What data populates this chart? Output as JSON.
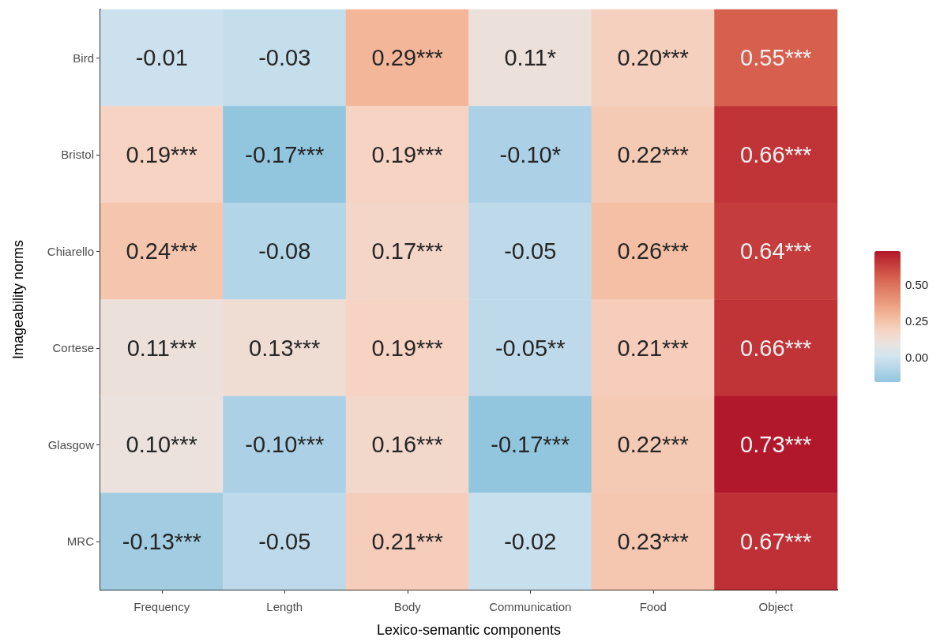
{
  "chart_data": {
    "type": "heatmap",
    "xlabel": "Lexico-semantic components",
    "ylabel": "Imageability norms",
    "categories": [
      "Frequency",
      "Length",
      "Body",
      "Communication",
      "Food",
      "Object"
    ],
    "y_categories": [
      "Bird",
      "Bristol",
      "Chiarello",
      "Cortese",
      "Glasgow",
      "MRC"
    ],
    "cells": [
      [
        -0.01,
        -0.03,
        0.29,
        0.11,
        0.2,
        0.55
      ],
      [
        0.19,
        -0.17,
        0.19,
        -0.1,
        0.22,
        0.66
      ],
      [
        0.24,
        -0.08,
        0.17,
        -0.05,
        0.26,
        0.64
      ],
      [
        0.11,
        0.13,
        0.19,
        -0.05,
        0.21,
        0.66
      ],
      [
        0.1,
        -0.1,
        0.16,
        -0.17,
        0.22,
        0.73
      ],
      [
        -0.13,
        -0.05,
        0.21,
        -0.02,
        0.23,
        0.67
      ]
    ],
    "cell_labels": [
      [
        "-0.01",
        "-0.03",
        "0.29***",
        "0.11*",
        "0.20***",
        "0.55***"
      ],
      [
        "0.19***",
        "-0.17***",
        "0.19***",
        "-0.10*",
        "0.22***",
        "0.66***"
      ],
      [
        "0.24***",
        "-0.08",
        "0.17***",
        "-0.05",
        "0.26***",
        "0.64***"
      ],
      [
        "0.11***",
        "0.13***",
        "0.19***",
        "-0.05**",
        "0.21***",
        "0.66***"
      ],
      [
        "0.10***",
        "-0.10***",
        "0.16***",
        "-0.17***",
        "0.22***",
        "0.73***"
      ],
      [
        "-0.13***",
        "-0.05",
        "0.21***",
        "-0.02",
        "0.23***",
        "0.67***"
      ]
    ],
    "clim": [
      -0.17,
      0.73
    ],
    "cticks": [
      {
        "value": 0,
        "label": "0.00"
      },
      {
        "value": 0.25,
        "label": "0.25"
      },
      {
        "value": 0.5,
        "label": "0.50"
      }
    ]
  }
}
